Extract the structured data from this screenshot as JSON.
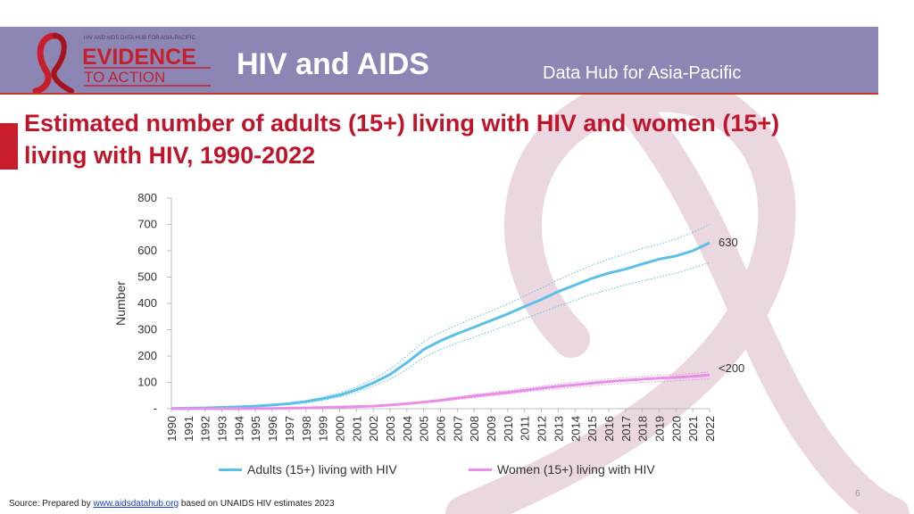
{
  "header": {
    "logo_top": "HIV AND AIDS DATA HUB FOR ASIA-PACIFIC",
    "logo_main": "EVIDENCE",
    "logo_sub": "TO ACTION",
    "title": "HIV and AIDS",
    "subtitle": "Data Hub for Asia-Pacific"
  },
  "colors": {
    "banner": "#8c86b4",
    "title": "#c0142b",
    "adults": "#5bc0e8",
    "women": "#e88ee6"
  },
  "chart_data": {
    "type": "line",
    "title": "Estimated number of adults (15+) living with HIV and women (15+) living with HIV, 1990-2022",
    "ylabel": "Number",
    "xlabel": "",
    "ylim": [
      0,
      800
    ],
    "yticks": [
      0,
      100,
      200,
      300,
      400,
      500,
      600,
      700,
      800
    ],
    "ytick_labels": [
      "-",
      "100",
      "200",
      "300",
      "400",
      "500",
      "600",
      "700",
      "800"
    ],
    "categories": [
      "1990",
      "1991",
      "1992",
      "1993",
      "1994",
      "1995",
      "1996",
      "1997",
      "1998",
      "1999",
      "2000",
      "2001",
      "2002",
      "2003",
      "2004",
      "2005",
      "2006",
      "2007",
      "2008",
      "2009",
      "2010",
      "2011",
      "2012",
      "2013",
      "2014",
      "2015",
      "2016",
      "2017",
      "2018",
      "2019",
      "2020",
      "2021",
      "2022"
    ],
    "series": [
      {
        "name": "Adults  (15+) living with HIV",
        "color": "#5bc0e8",
        "values": [
          1,
          2,
          3,
          5,
          7,
          10,
          14,
          19,
          27,
          38,
          52,
          72,
          98,
          130,
          175,
          225,
          258,
          285,
          310,
          335,
          360,
          388,
          415,
          445,
          470,
          495,
          515,
          530,
          550,
          568,
          580,
          600,
          630
        ],
        "lower": [
          1,
          2,
          3,
          4,
          6,
          8,
          12,
          16,
          22,
          32,
          45,
          62,
          85,
          112,
          150,
          195,
          225,
          250,
          272,
          295,
          318,
          342,
          365,
          390,
          412,
          435,
          452,
          470,
          485,
          500,
          515,
          535,
          555
        ],
        "upper": [
          1,
          2,
          3,
          5,
          8,
          12,
          16,
          22,
          31,
          44,
          60,
          82,
          112,
          150,
          200,
          255,
          290,
          318,
          345,
          370,
          398,
          428,
          458,
          490,
          518,
          545,
          568,
          588,
          608,
          625,
          645,
          670,
          700
        ]
      },
      {
        "name": "Women  (15+) living with HIV",
        "color": "#e88ee6",
        "values": [
          0,
          0,
          0,
          0,
          0,
          1,
          1,
          2,
          3,
          4,
          6,
          8,
          10,
          14,
          19,
          25,
          32,
          40,
          48,
          55,
          62,
          70,
          78,
          85,
          91,
          97,
          103,
          108,
          112,
          116,
          119,
          123,
          128
        ],
        "lower": [
          0,
          0,
          0,
          0,
          0,
          1,
          1,
          2,
          2,
          3,
          5,
          7,
          9,
          12,
          17,
          22,
          28,
          35,
          42,
          49,
          56,
          63,
          70,
          76,
          82,
          87,
          92,
          96,
          100,
          103,
          106,
          109,
          113
        ],
        "upper": [
          0,
          0,
          0,
          0,
          1,
          1,
          2,
          3,
          4,
          5,
          7,
          10,
          12,
          16,
          22,
          28,
          36,
          45,
          54,
          62,
          70,
          78,
          86,
          94,
          100,
          107,
          113,
          118,
          122,
          127,
          130,
          134,
          140
        ]
      }
    ],
    "annotations": [
      "630",
      "<200"
    ],
    "legend": "bottom",
    "grid": false
  },
  "footer": {
    "source_prefix": "Source: Prepared by ",
    "source_link": "www.aidsdatahub.org",
    "source_suffix": "  based on UNAIDS HIV estimates 2023",
    "page_number": "6"
  }
}
